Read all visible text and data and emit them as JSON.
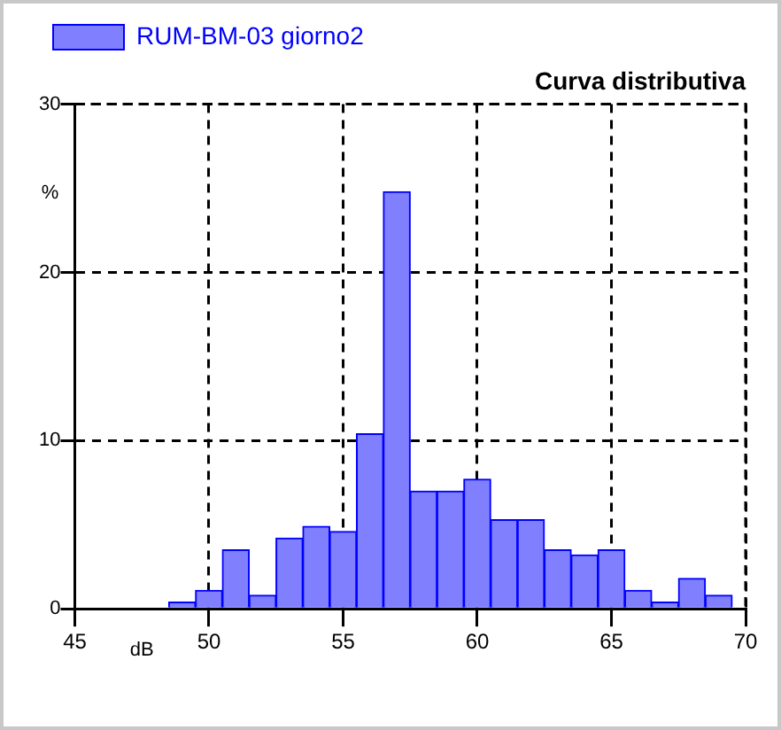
{
  "chart_data": {
    "type": "histogram",
    "title": "Curva distributiva",
    "xlabel": "dB",
    "ylabel": "%",
    "bins": [
      48.5,
      49.5,
      50.5,
      51.5,
      52.5,
      53.5,
      54.5,
      55.5,
      56.5,
      57.5,
      58.5,
      59.5,
      60.5,
      61.5,
      62.5,
      63.5,
      64.5,
      65.5,
      66.5,
      67.5,
      68.5,
      69.5
    ],
    "series": [
      {
        "name": "RUM-BM-03 giorno2",
        "color": "#8080ff",
        "values": [
          0.4,
          1.1,
          3.5,
          0.8,
          4.2,
          4.9,
          4.6,
          10.4,
          24.8,
          7.0,
          7.0,
          7.7,
          5.3,
          5.3,
          3.5,
          3.2,
          3.5,
          1.1,
          0.4,
          1.8,
          0.8
        ]
      }
    ],
    "xlim": [
      45,
      70
    ],
    "xticks": [
      45,
      50,
      55,
      60,
      65,
      70
    ],
    "ylim": [
      0,
      30
    ],
    "yticks": [
      0,
      10,
      20,
      30
    ],
    "grid": true,
    "legend": "top left"
  }
}
